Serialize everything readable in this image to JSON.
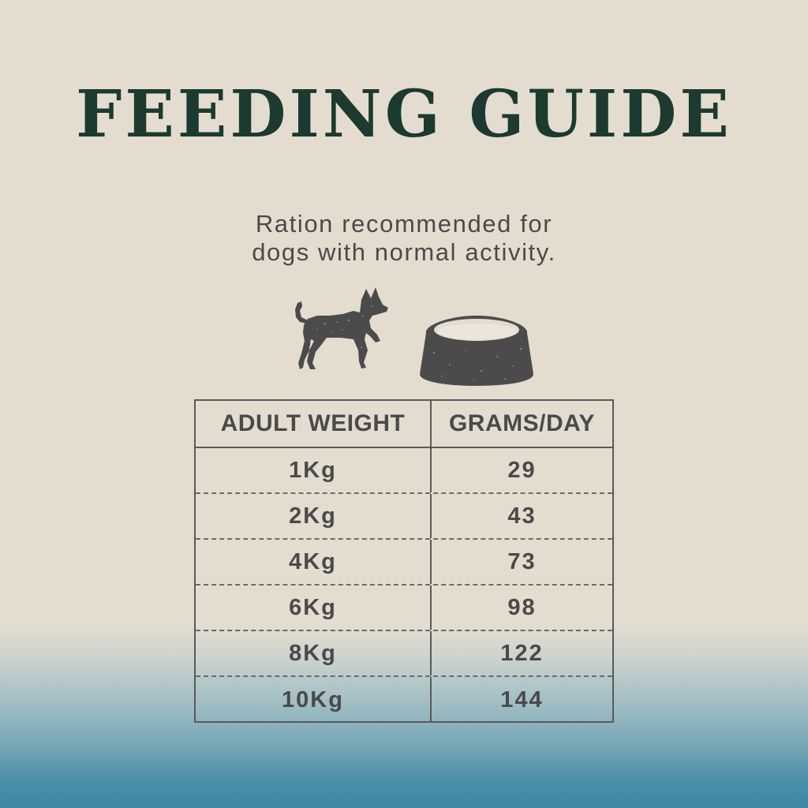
{
  "title": "FEEDING GUIDE",
  "subtitle": {
    "line1": "Ration recommended for",
    "line2": "dogs with normal activity."
  },
  "icons": [
    "dog-icon",
    "bowl-icon"
  ],
  "colors": {
    "title": "#1c3a2f",
    "text": "#4a4a4a",
    "icon": "#4b4b4b",
    "background": "#e4ddcf",
    "bottom_gradient": "#3f88a3"
  },
  "table": {
    "headers": [
      "ADULT WEIGHT",
      "GRAMS/DAY"
    ],
    "rows": [
      [
        "1Kg",
        "29"
      ],
      [
        "2Kg",
        "43"
      ],
      [
        "4Kg",
        "73"
      ],
      [
        "6Kg",
        "98"
      ],
      [
        "8Kg",
        "122"
      ],
      [
        "10Kg",
        "144"
      ]
    ]
  }
}
